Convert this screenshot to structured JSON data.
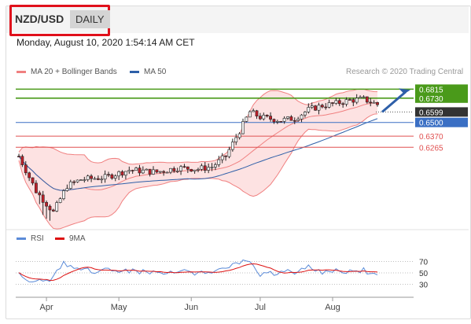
{
  "header": {
    "symbol": "NZD/USD",
    "timeframe": "DAILY",
    "datetime": "Monday, August 10, 2020 1:54:14 AM CET"
  },
  "legend": {
    "bollinger_label": "MA 20 + Bollinger Bands",
    "ma50_label": "MA 50",
    "credit": "Research © 2020 Trading Central",
    "rsi_label": "RSI",
    "ma9_label": "9MA"
  },
  "colors": {
    "bollinger": "#f08080",
    "bollinger_fill": "#fde2e2",
    "ma50": "#2e5fa8",
    "resistance": "#4a9a1a",
    "support_blue": "#3a6fc4",
    "support_red": "#e05050",
    "current": "#333333",
    "candle_up": "#f2f2f2",
    "candle_down": "#c0202a",
    "rsi": "#5b8bd8",
    "ma9": "#dd1111"
  },
  "chart_data": {
    "type": "candlestick",
    "price_levels": [
      {
        "value": 0.6815,
        "label": "0.6815",
        "kind": "resistance"
      },
      {
        "value": 0.673,
        "label": "0.6730",
        "kind": "resistance"
      },
      {
        "value": 0.6599,
        "label": "0.6599",
        "kind": "current"
      },
      {
        "value": 0.65,
        "label": "0.6500",
        "kind": "support"
      },
      {
        "value": 0.637,
        "label": "0.6370",
        "kind": "support"
      },
      {
        "value": 0.6265,
        "label": "0.6265",
        "kind": "support"
      }
    ],
    "price_range": [
      0.55,
      0.687
    ],
    "x_labels": [
      "Apr",
      "May",
      "Jun",
      "Jul",
      "Aug"
    ],
    "rsi_levels": [
      70,
      50,
      30
    ],
    "rsi_range": [
      10,
      90
    ]
  }
}
